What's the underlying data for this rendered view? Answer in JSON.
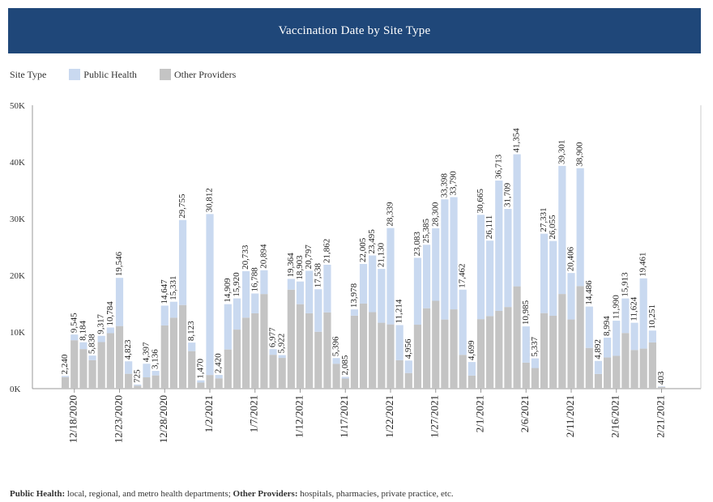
{
  "header": {
    "title": "Vaccination Date by Site Type"
  },
  "legend": {
    "title": "Site Type",
    "items": [
      {
        "label": "Public Health",
        "color": "#c9d9f0"
      },
      {
        "label": "Other Providers",
        "color": "#c4c4c4"
      }
    ]
  },
  "footnote": {
    "ph_label": "Public Health:",
    "ph_text": " local, regional, and metro health departments; ",
    "op_label": "Other Providers:",
    "op_text": " hospitals, pharmacies, private practice, etc."
  },
  "chart_data": {
    "type": "bar",
    "stacked": true,
    "title": "Vaccination Date by Site Type",
    "xlabel": "",
    "ylabel": "",
    "ylim": [
      0,
      50000
    ],
    "yticks": [
      0,
      10000,
      20000,
      30000,
      40000,
      50000
    ],
    "ytick_labels": [
      "0K",
      "10K",
      "20K",
      "30K",
      "40K",
      "50K"
    ],
    "xtick_labels": [
      "12/18/2020",
      "12/23/2020",
      "12/28/2020",
      "1/2/2021",
      "1/7/2021",
      "1/12/2021",
      "1/17/2021",
      "1/22/2021",
      "1/27/2021",
      "2/1/2021",
      "2/6/2021",
      "2/11/2021",
      "2/16/2021",
      "2/21/2021"
    ],
    "categories": [
      "12/17/2020",
      "12/18/2020",
      "12/19/2020",
      "12/20/2020",
      "12/21/2020",
      "12/22/2020",
      "12/23/2020",
      "12/24/2020",
      "12/25/2020",
      "12/26/2020",
      "12/27/2020",
      "12/28/2020",
      "12/29/2020",
      "12/30/2020",
      "12/31/2020",
      "1/1/2021",
      "1/2/2021",
      "1/3/2021",
      "1/4/2021",
      "1/5/2021",
      "1/6/2021",
      "1/7/2021",
      "1/8/2021",
      "1/9/2021",
      "1/10/2021",
      "1/11/2021",
      "1/12/2021",
      "1/13/2021",
      "1/14/2021",
      "1/15/2021",
      "1/16/2021",
      "1/17/2021",
      "1/18/2021",
      "1/19/2021",
      "1/20/2021",
      "1/21/2021",
      "1/22/2021",
      "1/23/2021",
      "1/24/2021",
      "1/25/2021",
      "1/26/2021",
      "1/27/2021",
      "1/28/2021",
      "1/29/2021",
      "1/30/2021",
      "1/31/2021",
      "2/1/2021",
      "2/2/2021",
      "2/3/2021",
      "2/4/2021",
      "2/5/2021",
      "2/6/2021",
      "2/7/2021",
      "2/8/2021",
      "2/9/2021",
      "2/10/2021",
      "2/11/2021",
      "2/12/2021",
      "2/13/2021",
      "2/14/2021",
      "2/15/2021",
      "2/16/2021",
      "2/17/2021",
      "2/18/2021",
      "2/19/2021",
      "2/20/2021",
      "2/21/2021"
    ],
    "totals": [
      2240,
      9545,
      8184,
      5838,
      9317,
      10784,
      19546,
      4823,
      725,
      4397,
      3136,
      14647,
      15331,
      29755,
      8123,
      1470,
      30812,
      2420,
      14909,
      15920,
      20733,
      16788,
      20894,
      6977,
      5922,
      19364,
      18903,
      20797,
      17538,
      21862,
      5396,
      2085,
      13978,
      22005,
      23495,
      21130,
      28339,
      11214,
      4956,
      23083,
      25385,
      28300,
      33398,
      33790,
      17462,
      4699,
      30665,
      26111,
      36713,
      31709,
      41354,
      10985,
      5337,
      27331,
      26055,
      39301,
      20406,
      38900,
      14486,
      4892,
      8994,
      11990,
      15913,
      11624,
      19461,
      10251,
      403
    ],
    "series": [
      {
        "name": "Public Health",
        "values": [
          200,
          1000,
          1200,
          800,
          1100,
          1000,
          8500,
          2200,
          200,
          2400,
          800,
          3500,
          2800,
          15000,
          1500,
          400,
          28400,
          600,
          8000,
          5500,
          8200,
          3500,
          4200,
          1000,
          500,
          1900,
          4000,
          7500,
          7500,
          8400,
          1000,
          300,
          1100,
          7000,
          10000,
          9500,
          17000,
          6200,
          2200,
          11800,
          11200,
          12800,
          21200,
          19800,
          11500,
          2400,
          18400,
          13300,
          23000,
          17300,
          23300,
          6400,
          1700,
          14000,
          13200,
          22600,
          8200,
          20800,
          7300,
          2300,
          3500,
          6200,
          6100,
          4800,
          12400,
          2100,
          100
        ]
      },
      {
        "name": "Other Providers",
        "values": [
          2040,
          8545,
          6984,
          5038,
          8217,
          9784,
          11046,
          2623,
          525,
          1997,
          2336,
          11147,
          12531,
          14755,
          6623,
          1070,
          2412,
          1820,
          6909,
          10420,
          12533,
          13288,
          16694,
          5977,
          5422,
          17464,
          14903,
          13297,
          10038,
          13462,
          4396,
          1785,
          12878,
          15005,
          13495,
          11630,
          11339,
          5014,
          2756,
          11283,
          14185,
          15500,
          12198,
          13990,
          5962,
          2299,
          12265,
          12811,
          13713,
          14409,
          18054,
          4585,
          3637,
          13331,
          12855,
          16701,
          12206,
          18100,
          7186,
          2592,
          5494,
          5790,
          9813,
          6824,
          7061,
          8151,
          303
        ]
      }
    ]
  }
}
